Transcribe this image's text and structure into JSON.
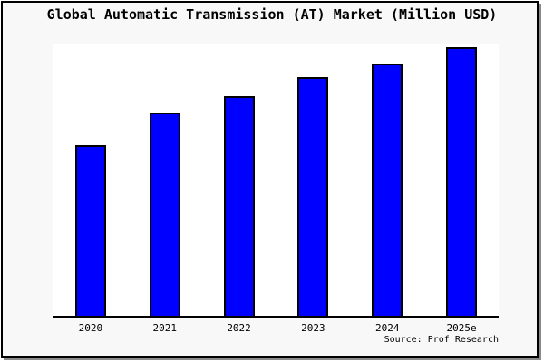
{
  "title": "Global Automatic Transmission (AT) Market (Million USD)",
  "source": "Source: Prof Research",
  "colors": {
    "bar_fill": "#0000ff",
    "bar_border": "#000000",
    "plot_background": "#ffffff",
    "canvas_background": "#f8f8f8",
    "frame_border": "#000000",
    "frame_shadow": "#8a8a8a",
    "axis_line": "#000000",
    "text": "#000000"
  },
  "chart_data": {
    "type": "bar",
    "title": "Global Automatic Transmission (AT) Market (Million USD)",
    "categories": [
      "2020",
      "2021",
      "2022",
      "2023",
      "2024",
      "2025e"
    ],
    "values": [
      63,
      75,
      81,
      88,
      93,
      99
    ],
    "value_scale": "relative height, percent of plot height (no y-axis tick labels shown in chart)",
    "xlabel": "",
    "ylabel": "",
    "ylim": [
      0,
      100
    ],
    "grid": false,
    "legend": false,
    "y_axis_visible": false,
    "x_axis_visible": true,
    "annotations": [
      "Source: Prof Research"
    ]
  }
}
